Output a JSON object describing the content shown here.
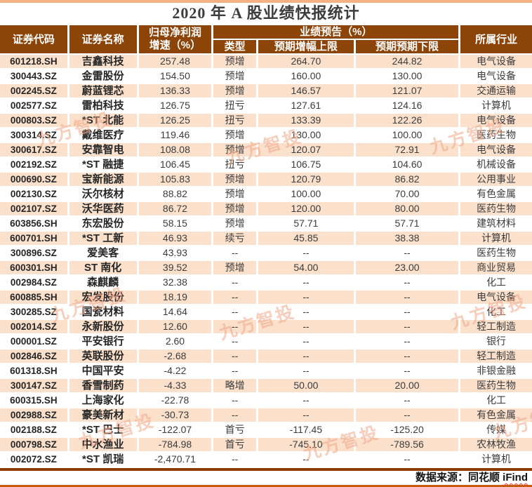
{
  "title": "2020 年 A 股业绩快报统计",
  "watermark_text": "九方智投",
  "colors": {
    "header_bg": "#8D4408",
    "row_alt_bg": "#FBE0CC",
    "top_rule": "#F4B183",
    "table_rule": "#8B3E00",
    "page_rule": "#C9590C",
    "watermark": "#F0A685",
    "squiggle": "#FF2A2A"
  },
  "table": {
    "headers": {
      "code": "证券代码",
      "name": "证券名称",
      "growth_line1": "归母净利润",
      "growth_line2": "增速（%）",
      "forecast_group": "业绩预告（%）",
      "type": "类型",
      "upper": "预期增幅上限",
      "lower": "预期预期下限",
      "industry": "所属行业"
    },
    "rows": [
      {
        "code": "601218.SH",
        "name": "吉鑫科技",
        "growth": "257.48",
        "type": "预增",
        "upper": "264.70",
        "lower": "244.82",
        "industry": "电气设备"
      },
      {
        "code": "300443.SZ",
        "name": "金雷股份",
        "growth": "154.50",
        "type": "预增",
        "upper": "160.00",
        "lower": "130.00",
        "industry": "电气设备"
      },
      {
        "code": "002245.SZ",
        "name": "蔚蓝锂芯",
        "growth": "136.33",
        "type": "预增",
        "upper": "146.57",
        "lower": "121.07",
        "industry": "交通运输"
      },
      {
        "code": "002577.SZ",
        "name": "雷柏科技",
        "growth": "126.75",
        "type": "扭亏",
        "upper": "127.61",
        "lower": "124.16",
        "industry": "计算机"
      },
      {
        "code": "000803.SZ",
        "name": "*ST 北能",
        "growth": "126.25",
        "type": "扭亏",
        "upper": "133.39",
        "lower": "122.26",
        "industry": "电气设备"
      },
      {
        "code": "300314.SZ",
        "name": "戴维医疗",
        "growth": "119.46",
        "type": "预增",
        "upper": "130.00",
        "lower": "100.00",
        "industry": "医药生物"
      },
      {
        "code": "300617.SZ",
        "name": "安靠智电",
        "growth": "108.08",
        "type": "预增",
        "upper": "120.07",
        "lower": "72.91",
        "industry": "电气设备"
      },
      {
        "code": "002192.SZ",
        "name": "*ST 融捷",
        "growth": "106.45",
        "type": "扭亏",
        "upper": "106.75",
        "lower": "104.60",
        "industry": "机械设备"
      },
      {
        "code": "000690.SZ",
        "name": "宝新能源",
        "growth": "105.83",
        "type": "预增",
        "upper": "120.79",
        "lower": "86.82",
        "industry": "公用事业"
      },
      {
        "code": "002130.SZ",
        "name": "沃尔核材",
        "growth": "88.82",
        "type": "预增",
        "upper": "100.00",
        "lower": "70.00",
        "industry": "有色金属"
      },
      {
        "code": "002107.SZ",
        "name": "沃华医药",
        "growth": "86.72",
        "type": "预增",
        "upper": "120.00",
        "lower": "80.00",
        "industry": "医药生物"
      },
      {
        "code": "603856.SH",
        "name": "东宏股份",
        "growth": "58.15",
        "type": "预增",
        "upper": "57.71",
        "lower": "57.71",
        "industry": "建筑材料"
      },
      {
        "code": "600701.SH",
        "name": "*ST 工新",
        "growth": "46.93",
        "type": "续亏",
        "upper": "45.85",
        "lower": "38.38",
        "industry": "计算机"
      },
      {
        "code": "300896.SZ",
        "name": "爱美客",
        "growth": "43.93",
        "type": "--",
        "upper": "--",
        "lower": "--",
        "industry": "医药生物"
      },
      {
        "code": "600301.SH",
        "name": "ST 南化",
        "growth": "39.52",
        "type": "预增",
        "upper": "54.00",
        "lower": "23.00",
        "industry": "商业贸易"
      },
      {
        "code": "002984.SZ",
        "name": "森麒麟",
        "growth": "32.38",
        "type": "--",
        "upper": "--",
        "lower": "--",
        "industry": "化工"
      },
      {
        "code": "600885.SH",
        "name": "宏发股份",
        "growth": "18.19",
        "type": "--",
        "upper": "--",
        "lower": "--",
        "industry": "电气设备"
      },
      {
        "code": "300285.SZ",
        "name": "国瓷材料",
        "growth": "14.64",
        "type": "--",
        "upper": "--",
        "lower": "--",
        "industry": "化工"
      },
      {
        "code": "002014.SZ",
        "name": "永新股份",
        "growth": "12.60",
        "type": "--",
        "upper": "--",
        "lower": "--",
        "industry": "轻工制造"
      },
      {
        "code": "000001.SZ",
        "name": "平安银行",
        "growth": "2.60",
        "type": "--",
        "upper": "--",
        "lower": "--",
        "industry": "银行"
      },
      {
        "code": "002846.SZ",
        "name": "英联股份",
        "growth": "-2.68",
        "type": "--",
        "upper": "--",
        "lower": "--",
        "industry": "轻工制造"
      },
      {
        "code": "601318.SH",
        "name": "中国平安",
        "growth": "-4.22",
        "type": "--",
        "upper": "--",
        "lower": "--",
        "industry": "非银金融"
      },
      {
        "code": "300147.SZ",
        "name": "香雪制药",
        "growth": "-4.33",
        "type": "略增",
        "upper": "50.00",
        "lower": "20.00",
        "industry": "医药生物"
      },
      {
        "code": "600315.SH",
        "name": "上海家化",
        "growth": "-22.78",
        "type": "--",
        "upper": "--",
        "lower": "--",
        "industry": "化工"
      },
      {
        "code": "002988.SZ",
        "name": "豪美新材",
        "growth": "-30.73",
        "type": "--",
        "upper": "--",
        "lower": "--",
        "industry": "有色金属"
      },
      {
        "code": "002188.SZ",
        "name": "*ST 巴士",
        "growth": "-122.07",
        "type": "首亏",
        "upper": "-117.45",
        "lower": "-125.20",
        "industry": "传媒"
      },
      {
        "code": "000798.SZ",
        "name": "中水渔业",
        "growth": "-784.98",
        "type": "首亏",
        "upper": "-745.10",
        "lower": "-789.56",
        "industry": "农林牧渔"
      },
      {
        "code": "002072.SZ",
        "name": "*ST 凯瑞",
        "growth": "-2,470.71",
        "type": "--",
        "upper": "--",
        "lower": "--",
        "industry": "计算机"
      }
    ]
  },
  "footer": {
    "source_prefix": "数据来源：同花顺 ",
    "source_suffix": "iFind"
  },
  "chart_data": {
    "type": "table",
    "title": "2020 年 A 股业绩快报统计",
    "columns": [
      "证券代码",
      "证券名称",
      "归母净利润增速（%）",
      "业绩预告类型",
      "业绩预告预期增幅上限（%）",
      "业绩预告预期预期下限（%）",
      "所属行业"
    ],
    "rows": [
      [
        "601218.SH",
        "吉鑫科技",
        257.48,
        "预增",
        264.7,
        244.82,
        "电气设备"
      ],
      [
        "300443.SZ",
        "金雷股份",
        154.5,
        "预增",
        160.0,
        130.0,
        "电气设备"
      ],
      [
        "002245.SZ",
        "蔚蓝锂芯",
        136.33,
        "预增",
        146.57,
        121.07,
        "交通运输"
      ],
      [
        "002577.SZ",
        "雷柏科技",
        126.75,
        "扭亏",
        127.61,
        124.16,
        "计算机"
      ],
      [
        "000803.SZ",
        "*ST 北能",
        126.25,
        "扭亏",
        133.39,
        122.26,
        "电气设备"
      ],
      [
        "300314.SZ",
        "戴维医疗",
        119.46,
        "预增",
        130.0,
        100.0,
        "医药生物"
      ],
      [
        "300617.SZ",
        "安靠智电",
        108.08,
        "预增",
        120.07,
        72.91,
        "电气设备"
      ],
      [
        "002192.SZ",
        "*ST 融捷",
        106.45,
        "扭亏",
        106.75,
        104.6,
        "机械设备"
      ],
      [
        "000690.SZ",
        "宝新能源",
        105.83,
        "预增",
        120.79,
        86.82,
        "公用事业"
      ],
      [
        "002130.SZ",
        "沃尔核材",
        88.82,
        "预增",
        100.0,
        70.0,
        "有色金属"
      ],
      [
        "002107.SZ",
        "沃华医药",
        86.72,
        "预增",
        120.0,
        80.0,
        "医药生物"
      ],
      [
        "603856.SH",
        "东宏股份",
        58.15,
        "预增",
        57.71,
        57.71,
        "建筑材料"
      ],
      [
        "600701.SH",
        "*ST 工新",
        46.93,
        "续亏",
        45.85,
        38.38,
        "计算机"
      ],
      [
        "300896.SZ",
        "爱美客",
        43.93,
        "--",
        "--",
        "--",
        "医药生物"
      ],
      [
        "600301.SH",
        "ST 南化",
        39.52,
        "预增",
        54.0,
        23.0,
        "商业贸易"
      ],
      [
        "002984.SZ",
        "森麒麟",
        32.38,
        "--",
        "--",
        "--",
        "化工"
      ],
      [
        "600885.SH",
        "宏发股份",
        18.19,
        "--",
        "--",
        "--",
        "电气设备"
      ],
      [
        "300285.SZ",
        "国瓷材料",
        14.64,
        "--",
        "--",
        "--",
        "化工"
      ],
      [
        "002014.SZ",
        "永新股份",
        12.6,
        "--",
        "--",
        "--",
        "轻工制造"
      ],
      [
        "000001.SZ",
        "平安银行",
        2.6,
        "--",
        "--",
        "--",
        "银行"
      ],
      [
        "002846.SZ",
        "英联股份",
        -2.68,
        "--",
        "--",
        "--",
        "轻工制造"
      ],
      [
        "601318.SH",
        "中国平安",
        -4.22,
        "--",
        "--",
        "--",
        "非银金融"
      ],
      [
        "300147.SZ",
        "香雪制药",
        -4.33,
        "略增",
        50.0,
        20.0,
        "医药生物"
      ],
      [
        "600315.SH",
        "上海家化",
        -22.78,
        "--",
        "--",
        "--",
        "化工"
      ],
      [
        "002988.SZ",
        "豪美新材",
        -30.73,
        "--",
        "--",
        "--",
        "有色金属"
      ],
      [
        "002188.SZ",
        "*ST 巴士",
        -122.07,
        "首亏",
        -117.45,
        -125.2,
        "传媒"
      ],
      [
        "000798.SZ",
        "中水渔业",
        -784.98,
        "首亏",
        -745.1,
        -789.56,
        "农林牧渔"
      ],
      [
        "002072.SZ",
        "*ST 凯瑞",
        -2470.71,
        "--",
        "--",
        "--",
        "计算机"
      ]
    ],
    "source": "数据来源：同花顺 iFind"
  }
}
